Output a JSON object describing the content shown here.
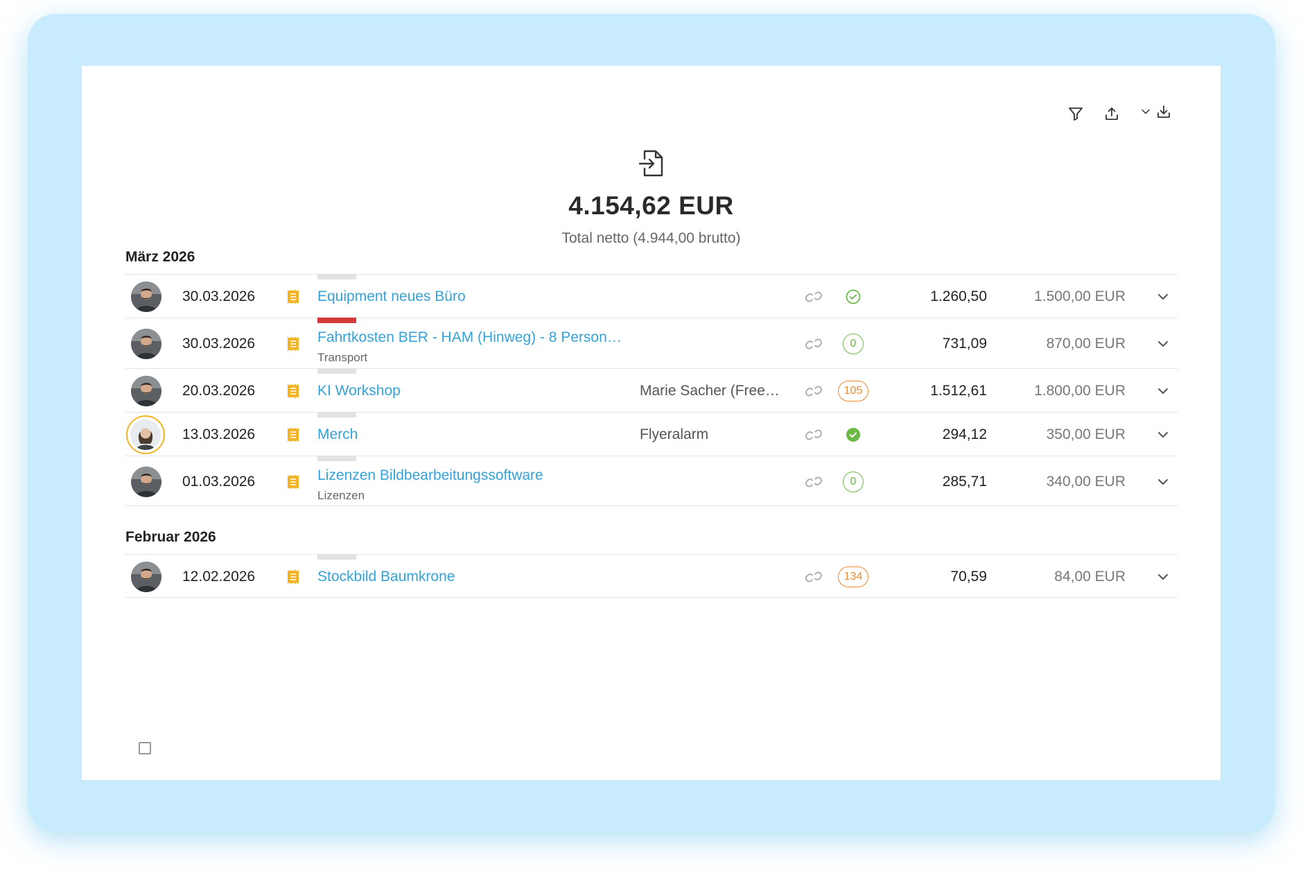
{
  "toolbar": {
    "filter": "filter-icon",
    "export": "upload-icon",
    "download": "download-icon"
  },
  "summary": {
    "total": "4.154,62 EUR",
    "subtitle": "Total netto (4.944,00 brutto)"
  },
  "groups": [
    {
      "month": "März 2026",
      "rows": [
        {
          "date": "30.03.2026",
          "title": "Equipment neues Büro",
          "category": "",
          "vendor": "",
          "status": "check-outline",
          "badge": "",
          "netto": "1.260,50",
          "brutto": "1.500,00 EUR",
          "bar_color": "#e2e2e2",
          "avatar": "man"
        },
        {
          "date": "30.03.2026",
          "title": "Fahrtkosten BER - HAM (Hinweg) - 8 Person…",
          "category": "Transport",
          "vendor": "",
          "status": "badge-green",
          "badge": "0",
          "netto": "731,09",
          "brutto": "870,00 EUR",
          "bar_color": "#d23a3a",
          "avatar": "man"
        },
        {
          "date": "20.03.2026",
          "title": "KI Workshop",
          "category": "",
          "vendor": "Marie Sacher (Free…",
          "status": "badge-orange",
          "badge": "105",
          "netto": "1.512,61",
          "brutto": "1.800,00 EUR",
          "bar_color": "#e2e2e2",
          "avatar": "man"
        },
        {
          "date": "13.03.2026",
          "title": "Merch",
          "category": "",
          "vendor": "Flyeralarm",
          "status": "check-filled",
          "badge": "",
          "netto": "294,12",
          "brutto": "350,00 EUR",
          "bar_color": "#e2e2e2",
          "avatar": "woman"
        },
        {
          "date": "01.03.2026",
          "title": "Lizenzen Bildbearbeitungssoftware",
          "category": "Lizenzen",
          "vendor": "",
          "status": "badge-green",
          "badge": "0",
          "netto": "285,71",
          "brutto": "340,00 EUR",
          "bar_color": "#e2e2e2",
          "avatar": "man"
        }
      ]
    },
    {
      "month": "Februar 2026",
      "rows": [
        {
          "date": "12.02.2026",
          "title": "Stockbild Baumkrone",
          "category": "",
          "vendor": "",
          "status": "badge-orange",
          "badge": "134",
          "netto": "70,59",
          "brutto": "84,00 EUR",
          "bar_color": "#e2e2e2",
          "avatar": "man"
        }
      ]
    }
  ],
  "colors": {
    "link": "#35a2d8",
    "accent_green": "#6bb846",
    "accent_orange": "#f0892b",
    "receipt": "#f2b325",
    "frame": "#c8ecfd"
  }
}
